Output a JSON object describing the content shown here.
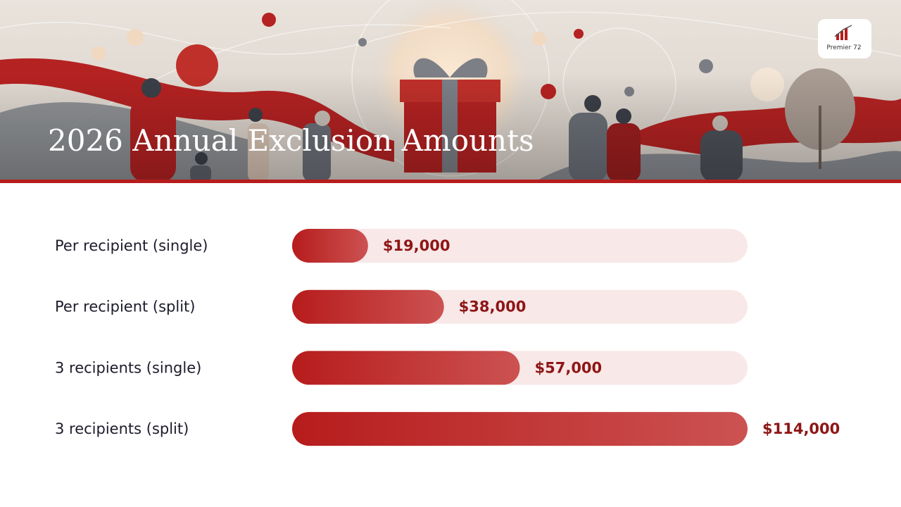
{
  "logo": "Premier 72",
  "chart_data": {
    "type": "bar",
    "orientation": "horizontal",
    "title": "2026 Annual Exclusion Amounts",
    "categories": [
      "Per recipient (single)",
      "Per recipient (split)",
      "3 recipients (single)",
      "3 recipients (split)"
    ],
    "values": [
      19000,
      38000,
      57000,
      114000
    ],
    "value_labels": [
      "$19,000",
      "$38,000",
      "$57,000",
      "$114,000"
    ],
    "color": "#b71c1c"
  }
}
